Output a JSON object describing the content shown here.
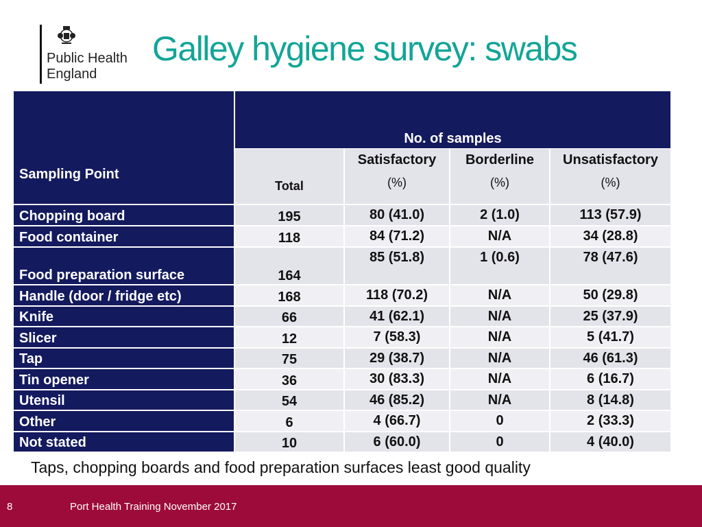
{
  "logo": {
    "line1": "Public Health",
    "line2": "England"
  },
  "title": "Galley hygiene survey: swabs",
  "table": {
    "sampling_point_header": "Sampling Point",
    "samples_header": "No. of samples",
    "total_header": "Total",
    "col_satisfactory": "Satisfactory",
    "col_borderline": "Borderline",
    "col_unsatisfactory": "Unsatisfactory",
    "pct": "(%)",
    "rows": [
      {
        "label": "Chopping board",
        "total": "195",
        "sat": "80 (41.0)",
        "bord": "2 (1.0)",
        "unsat": "113 (57.9)"
      },
      {
        "label": "Food container",
        "total": "118",
        "sat": "84 (71.2)",
        "bord": "N/A",
        "unsat": "34 (28.8)"
      },
      {
        "label": "Food preparation surface",
        "total": "164",
        "sat": "85 (51.8)",
        "bord": "1 (0.6)",
        "unsat": "78 (47.6)"
      },
      {
        "label": "Handle (door / fridge etc)",
        "total": "168",
        "sat": "118 (70.2)",
        "bord": "N/A",
        "unsat": "50 (29.8)"
      },
      {
        "label": "Knife",
        "total": "66",
        "sat": "41 (62.1)",
        "bord": "N/A",
        "unsat": "25 (37.9)"
      },
      {
        "label": "Slicer",
        "total": "12",
        "sat": "7 (58.3)",
        "bord": "N/A",
        "unsat": "5 (41.7)"
      },
      {
        "label": "Tap",
        "total": "75",
        "sat": "29 (38.7)",
        "bord": "N/A",
        "unsat": "46 (61.3)"
      },
      {
        "label": "Tin opener",
        "total": "36",
        "sat": "30 (83.3)",
        "bord": "N/A",
        "unsat": "6 (16.7)"
      },
      {
        "label": "Utensil",
        "total": "54",
        "sat": "46 (85.2)",
        "bord": "N/A",
        "unsat": "8 (14.8)"
      },
      {
        "label": "Other",
        "total": "6",
        "sat": "4 (66.7)",
        "bord": "0",
        "unsat": "2 (33.3)"
      },
      {
        "label": "Not stated",
        "total": "10",
        "sat": "6 (60.0)",
        "bord": "0",
        "unsat": "4 (40.0)"
      }
    ]
  },
  "footnote": "Taps, chopping boards and food preparation surfaces least good quality",
  "footer": {
    "page_number": "8",
    "text": "Port Health Training November 2017"
  },
  "colors": {
    "title": "#12a596",
    "navy": "#141a5e",
    "footer": "#9c0b3a"
  }
}
